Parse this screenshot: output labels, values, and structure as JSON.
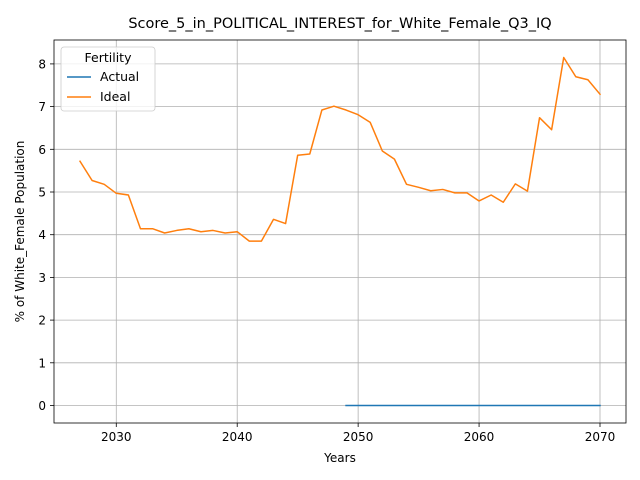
{
  "chart_data": {
    "type": "line",
    "title": "Score_5_in_POLITICAL_INTEREST_for_White_Female_Q3_IQ",
    "xlabel": "Years",
    "ylabel": "% of White_Female Population",
    "xlim": [
      2024.85,
      2072.15
    ],
    "ylim": [
      -0.41,
      8.56
    ],
    "xticks": [
      2030,
      2040,
      2050,
      2060,
      2070
    ],
    "yticks": [
      0,
      1,
      2,
      3,
      4,
      5,
      6,
      7,
      8
    ],
    "grid": true,
    "legend": {
      "title": "Fertility",
      "placement": "upper-left"
    },
    "series": [
      {
        "name": "Actual",
        "color": "#1f77b4",
        "x": [
          2049,
          2050,
          2051,
          2052,
          2053,
          2054,
          2055,
          2056,
          2057,
          2058,
          2059,
          2060,
          2061,
          2062,
          2063,
          2064,
          2065,
          2066,
          2067,
          2068,
          2069,
          2070
        ],
        "y": [
          0,
          0,
          0,
          0,
          0,
          0,
          0,
          0,
          0,
          0,
          0,
          0,
          0,
          0,
          0,
          0,
          0,
          0,
          0,
          0,
          0,
          0
        ]
      },
      {
        "name": "Ideal",
        "color": "#ff7f0e",
        "x": [
          2027,
          2028,
          2029,
          2030,
          2031,
          2032,
          2033,
          2034,
          2035,
          2036,
          2037,
          2038,
          2039,
          2040,
          2041,
          2042,
          2043,
          2044,
          2045,
          2046,
          2047,
          2048,
          2049,
          2050,
          2051,
          2052,
          2053,
          2054,
          2055,
          2056,
          2057,
          2058,
          2059,
          2060,
          2061,
          2062,
          2063,
          2064,
          2065,
          2066,
          2067,
          2068,
          2069,
          2070
        ],
        "y": [
          5.72,
          5.27,
          5.18,
          4.97,
          4.93,
          4.14,
          4.14,
          4.04,
          4.1,
          4.14,
          4.07,
          4.1,
          4.04,
          4.07,
          3.85,
          3.85,
          4.36,
          4.26,
          5.86,
          5.89,
          6.92,
          7.01,
          6.92,
          6.81,
          6.63,
          5.96,
          5.77,
          5.18,
          5.11,
          5.03,
          5.06,
          4.98,
          4.98,
          4.79,
          4.93,
          4.76,
          5.19,
          5.02,
          6.74,
          6.46,
          8.15,
          7.7,
          7.63,
          7.29
        ]
      }
    ]
  }
}
